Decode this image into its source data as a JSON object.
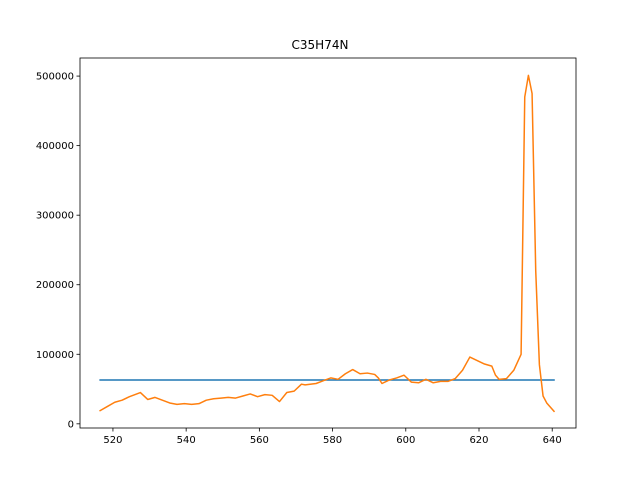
{
  "chart_data": {
    "type": "line",
    "title": "C35H74N",
    "xlabel": "",
    "ylabel": "",
    "xlim": [
      511,
      646.5
    ],
    "ylim": [
      -6000,
      526000
    ],
    "xticks": [
      520,
      540,
      560,
      580,
      600,
      620,
      640
    ],
    "yticks": [
      0,
      100000,
      200000,
      300000,
      400000,
      500000
    ],
    "xtick_labels": [
      "520",
      "540",
      "560",
      "580",
      "600",
      "620",
      "640"
    ],
    "ytick_labels": [
      "0",
      "100000",
      "200000",
      "300000",
      "400000",
      "500000"
    ],
    "grid": false,
    "series": [
      {
        "color": "#1f77b4",
        "x": [
          516.5,
          640.5
        ],
        "y": [
          63000,
          63000
        ]
      },
      {
        "color": "#ff7f0e",
        "x": [
          516.5,
          518.5,
          520.5,
          522.5,
          524.5,
          526.5,
          527.5,
          529.5,
          531.5,
          533.5,
          535.5,
          537.5,
          539.5,
          541.5,
          543.5,
          545.5,
          547.5,
          549.5,
          551.5,
          553.5,
          555.5,
          557.5,
          559.5,
          561.5,
          563.5,
          565.5,
          567.5,
          569.5,
          571.5,
          572.5,
          575.5,
          577.5,
          579.5,
          581.5,
          583.5,
          585.5,
          587.5,
          589.5,
          591.5,
          592.5,
          593.5,
          595.5,
          597.5,
          599.5,
          601.5,
          603.5,
          605.5,
          607.5,
          609.5,
          611.5,
          613.5,
          615.5,
          617.5,
          619.5,
          621.5,
          623.5,
          624.5,
          625.5,
          627.5,
          629.5,
          631.5,
          632.5,
          633.5,
          634.5,
          635.5,
          636.5,
          637.5,
          638.5,
          640.5
        ],
        "y": [
          19000,
          25000,
          31000,
          34000,
          39000,
          43000,
          45000,
          35000,
          38000,
          34000,
          30000,
          28000,
          29000,
          28000,
          29000,
          34000,
          36000,
          37000,
          38000,
          37000,
          40000,
          43000,
          39000,
          42000,
          41000,
          32000,
          45000,
          47000,
          57000,
          56000,
          58000,
          62000,
          66000,
          64000,
          72000,
          78000,
          72000,
          73000,
          71000,
          66000,
          58000,
          63000,
          66000,
          70000,
          60000,
          59000,
          64000,
          59000,
          61000,
          61000,
          65000,
          77000,
          96000,
          91000,
          86000,
          83000,
          70000,
          64000,
          65000,
          77000,
          100000,
          470000,
          501000,
          475000,
          220000,
          85000,
          40000,
          30000,
          18000
        ]
      }
    ]
  }
}
